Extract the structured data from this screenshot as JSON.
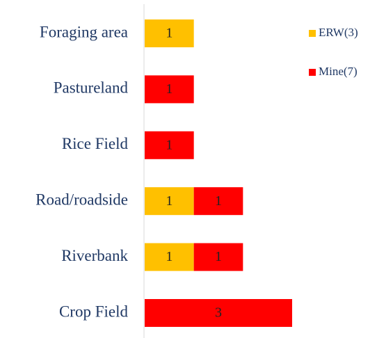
{
  "chart_data": {
    "type": "bar",
    "orientation": "horizontal",
    "stacked": true,
    "categories": [
      "Foraging area",
      "Pastureland",
      "Rice Field",
      "Road/roadside",
      "Riverbank",
      "Crop Field"
    ],
    "series": [
      {
        "name": "ERW(3)",
        "color": "#ffc000",
        "values": [
          1,
          0,
          0,
          1,
          1,
          0
        ]
      },
      {
        "name": "Mine(7)",
        "color": "#ff0000",
        "values": [
          0,
          1,
          1,
          1,
          1,
          3
        ]
      }
    ],
    "legend": "top-right"
  }
}
